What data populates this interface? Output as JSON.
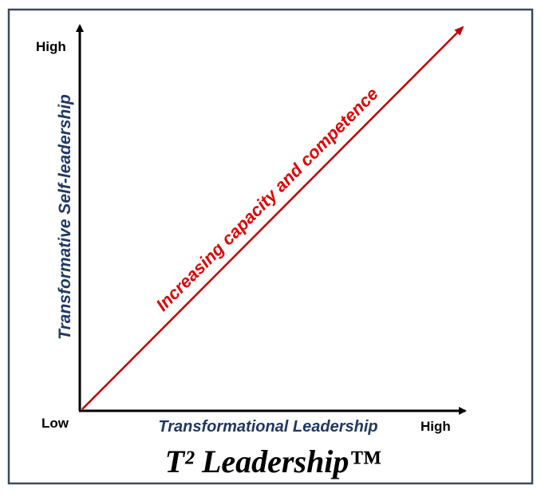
{
  "axes": {
    "y_high": "High",
    "origin": "Low",
    "x_high": "High",
    "y_label": "Transformative Self-leadership",
    "x_label": "Transformational Leadership"
  },
  "arrow_label": "Increasing capacity and competence",
  "title": "T² Leadership™"
}
